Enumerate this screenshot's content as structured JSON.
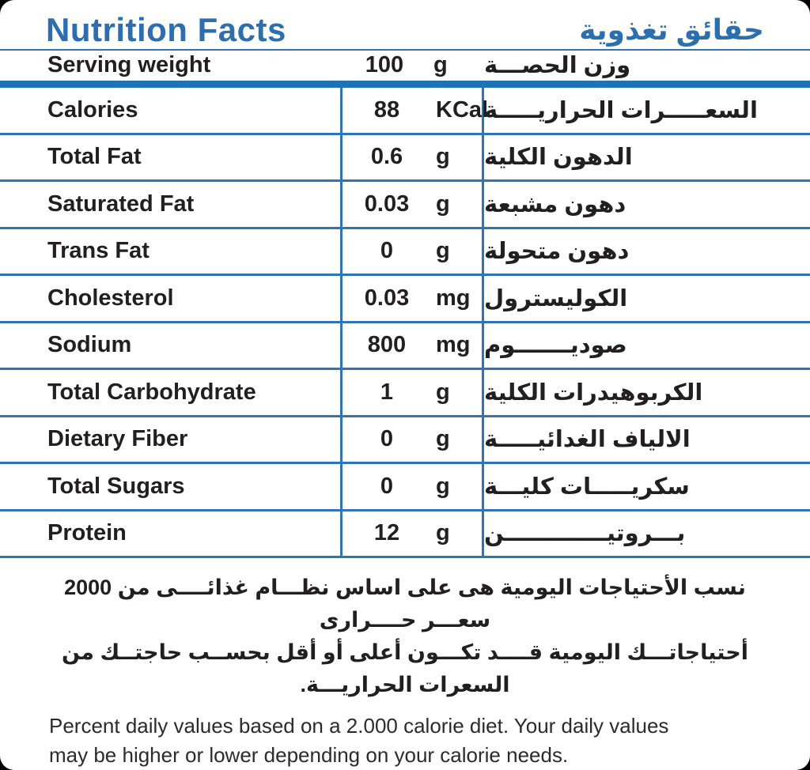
{
  "colors": {
    "background_outside": "#000000",
    "label_background": "#ffffff",
    "title_blue": "#2D6FAE",
    "rule_blue": "#2E75B6",
    "thick_bar_blue": "#1E72B8",
    "text_dark": "#231F20"
  },
  "header": {
    "title_en": "Nutrition Facts",
    "title_ar": "حقائق تغذوية"
  },
  "serving": {
    "label_en": "Serving weight",
    "value": "100",
    "unit": "g",
    "label_ar": "وزن الحصـــة"
  },
  "rows": [
    {
      "label_en": "Calories",
      "value": "88",
      "unit": "KCal",
      "label_ar": "السعـــــرات الحراريـــــة"
    },
    {
      "label_en": "Total Fat",
      "value": "0.6",
      "unit": "g",
      "label_ar": "الدهون الكلية"
    },
    {
      "label_en": "Saturated Fat",
      "value": "0.03",
      "unit": "g",
      "label_ar": "دهون مشبعة"
    },
    {
      "label_en": "Trans Fat",
      "value": "0",
      "unit": "g",
      "label_ar": "دهون متحولة"
    },
    {
      "label_en": "Cholesterol",
      "value": "0.03",
      "unit": "mg",
      "label_ar": "الكوليسترول"
    },
    {
      "label_en": "Sodium",
      "value": "800",
      "unit": "mg",
      "label_ar": "صوديـــــــوم"
    },
    {
      "label_en": "Total Carbohydrate",
      "value": "1",
      "unit": "g",
      "label_ar": "الكربوهيدرات الكلية"
    },
    {
      "label_en": "Dietary Fiber",
      "value": "0",
      "unit": "g",
      "label_ar": "الالياف الغدائيـــــة"
    },
    {
      "label_en": "Total Sugars",
      "value": "0",
      "unit": "g",
      "label_ar": "سكريـــــات كليـــة"
    },
    {
      "label_en": "Protein",
      "value": "12",
      "unit": "g",
      "label_ar": "بـــروتيـــــــــــــن"
    }
  ],
  "footer": {
    "ar_line1": "نسب الأحتياجات اليومية هى على اساس نظـــام غذائــــى من 2000 سعـــر حــــرارى",
    "ar_line2": "أحتياجاتـــك اليومية قــــد تكـــون أعلى أو أقل بحســب حاجتــك من السعرات الحراريـــة.",
    "en_line1": "Percent daily values based on a 2.000 calorie diet. Your daily values",
    "en_line2": "may be higher or lower depending on your calorie needs."
  }
}
